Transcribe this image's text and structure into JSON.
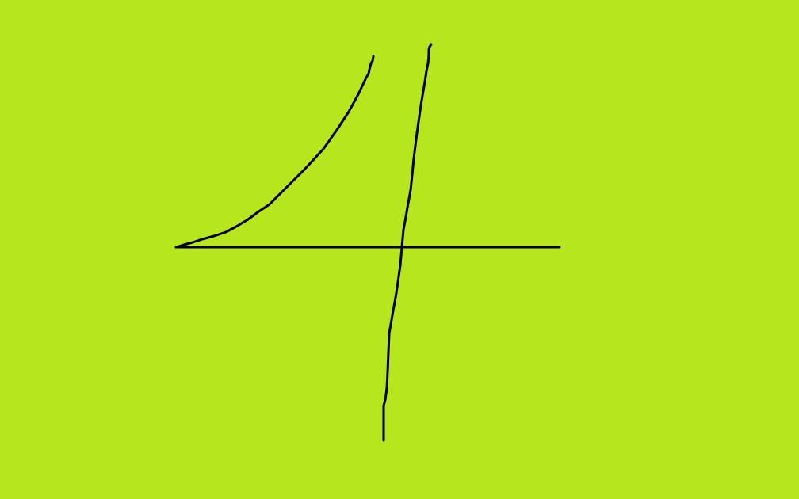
{
  "canvas": {
    "background_color": "#B6E61E",
    "ink_color": "#000000",
    "drawn_shape": "handwritten digit 4",
    "strokes": [
      "curved-left-stroke",
      "horizontal-crossbar",
      "vertical-stem"
    ]
  }
}
